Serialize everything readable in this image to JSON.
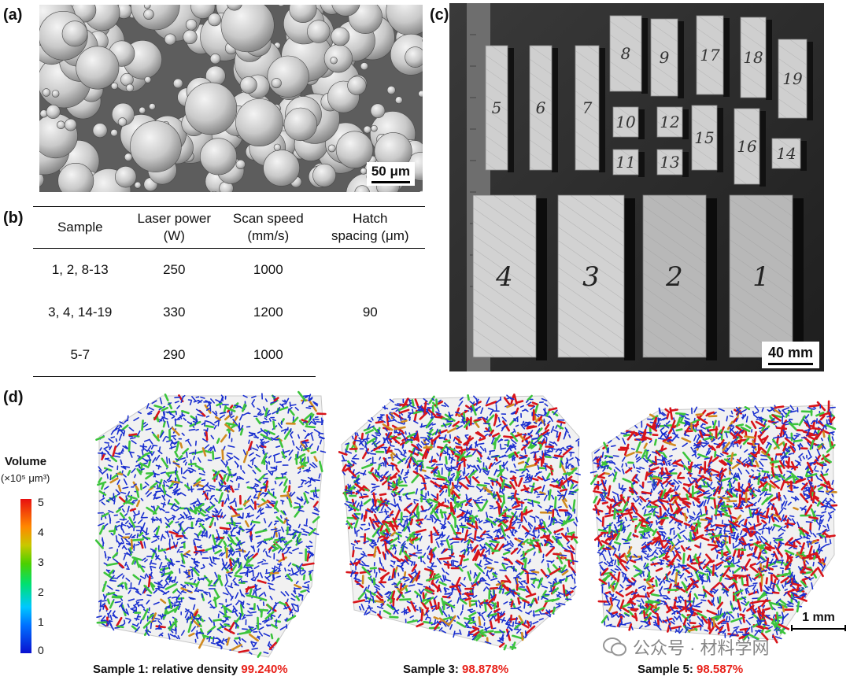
{
  "panels": {
    "a": {
      "label": "(a)",
      "scale_text": "50 μm"
    },
    "b": {
      "label": "(b)",
      "headers": [
        "Sample",
        "Laser power (W)",
        "Scan speed (mm/s)",
        "Hatch spacing (μm)"
      ],
      "header_lines": [
        [
          "Sample"
        ],
        [
          "Laser power",
          "(W)"
        ],
        [
          "Scan speed",
          "(mm/s)"
        ],
        [
          "Hatch",
          "spacing (μm)"
        ]
      ],
      "rows": [
        {
          "sample": "1, 2, 8-13",
          "power": "250",
          "speed": "1000"
        },
        {
          "sample": "3, 4, 14-19",
          "power": "330",
          "speed": "1200"
        },
        {
          "sample": "5-7",
          "power": "290",
          "speed": "1000"
        }
      ],
      "hatch_spacing": "90"
    },
    "c": {
      "label": "(c)",
      "scale_text": "40 mm",
      "small_labels": [
        "5",
        "6",
        "7",
        "8",
        "9",
        "17",
        "18",
        "19",
        "10",
        "12",
        "11",
        "13",
        "15",
        "16",
        "14"
      ],
      "large_labels": [
        "4",
        "3",
        "2",
        "1"
      ]
    },
    "d": {
      "label": "(d)",
      "colorbar": {
        "title": "Volume",
        "unit": "(×10⁵ μm³)",
        "ticks": [
          "5",
          "4",
          "3",
          "2",
          "1",
          "0"
        ]
      },
      "scale_text": "1 mm",
      "captions": [
        {
          "prefix": "Sample 1: relative density ",
          "value": "99.240%"
        },
        {
          "prefix": "Sample 3: ",
          "value": "98.878%"
        },
        {
          "prefix": "Sample 5: ",
          "value": "98.587%"
        }
      ]
    }
  },
  "watermark": "公众号 · 材料学网",
  "colors": {
    "highlight": "#e8221b",
    "blue": "#1a2fd0",
    "green": "#3cc43c",
    "red": "#d8141a"
  }
}
